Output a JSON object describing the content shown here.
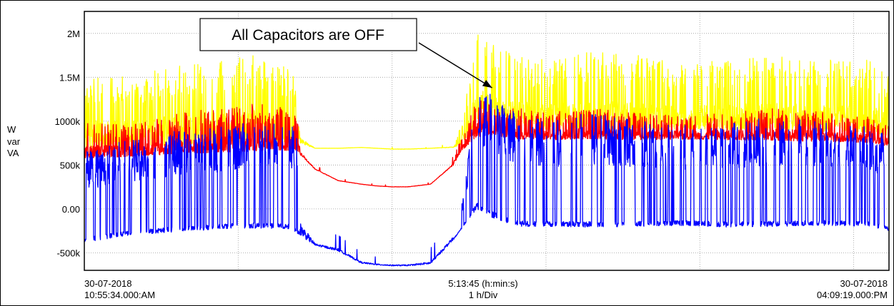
{
  "chart_data": {
    "type": "line",
    "ylabel_lines": [
      "W",
      "var",
      "VA"
    ],
    "y_ticks": [
      {
        "value": -500000,
        "label": "-500k"
      },
      {
        "value": 0,
        "label": "0.00"
      },
      {
        "value": 500000,
        "label": "500k"
      },
      {
        "value": 1000000,
        "label": "1000k"
      },
      {
        "value": 1500000,
        "label": "1.5M"
      },
      {
        "value": 2000000,
        "label": "2M"
      }
    ],
    "ylim": [
      -700000,
      2250000
    ],
    "xlim": [
      0,
      5.2292
    ],
    "grid": true,
    "x_start": {
      "date": "30-07-2018",
      "time": "10:55:34.000:AM"
    },
    "x_end": {
      "date": "30-07-2018",
      "time": "04:09:19.000:PM"
    },
    "x_span": "5:13:45 (h:min:s)",
    "x_scale": "1 h/Div",
    "annotation": {
      "text": "All Capacitors are OFF",
      "x": 2.65,
      "y": 1380000
    },
    "series": [
      {
        "key": "va",
        "color": "#ffff00",
        "mode": "mixed",
        "x": [
          0,
          0.3,
          0.6,
          0.9,
          1.1,
          1.35,
          1.4,
          1.5,
          1.65,
          1.8,
          1.9,
          2.0,
          2.1,
          2.25,
          2.4,
          2.45,
          2.55,
          2.65,
          2.8,
          3.0,
          3.3,
          3.6,
          3.9,
          4.2,
          4.5,
          4.8,
          5.1,
          5.2292
        ],
        "base": [
          650000,
          660000,
          680000,
          700000,
          710000,
          720000,
          750000,
          690000,
          690000,
          700000,
          690000,
          680000,
          680000,
          690000,
          700000,
          720000,
          930000,
          950000,
          880000,
          860000,
          870000,
          860000,
          870000,
          860000,
          850000,
          840000,
          830000,
          800000
        ],
        "peak": [
          1550000,
          1500000,
          1650000,
          1700000,
          1750000,
          1600000,
          1200000,
          700000,
          700000,
          700000,
          700000,
          700000,
          700000,
          700000,
          750000,
          950000,
          2050000,
          1900000,
          1750000,
          1700000,
          1800000,
          1750000,
          1650000,
          1700000,
          1750000,
          1700000,
          1700000,
          1550000
        ],
        "spiky": [
          1,
          1,
          1,
          1,
          1,
          1,
          1,
          0,
          0,
          0,
          0,
          0,
          0,
          0,
          1,
          1,
          1,
          1,
          1,
          1,
          1,
          1,
          1,
          1,
          1,
          1,
          1,
          1
        ]
      },
      {
        "key": "w",
        "color": "#ff0000",
        "mode": "mixed",
        "x": [
          0,
          0.3,
          0.6,
          0.9,
          1.1,
          1.35,
          1.4,
          1.5,
          1.65,
          1.8,
          1.9,
          2.0,
          2.1,
          2.25,
          2.4,
          2.45,
          2.55,
          2.65,
          2.8,
          3.0,
          3.3,
          3.6,
          3.9,
          4.2,
          4.5,
          4.8,
          5.1,
          5.2292
        ],
        "base": [
          550000,
          580000,
          600000,
          620000,
          630000,
          640000,
          620000,
          450000,
          320000,
          280000,
          260000,
          250000,
          250000,
          280000,
          500000,
          650000,
          800000,
          820000,
          780000,
          770000,
          780000,
          770000,
          780000,
          770000,
          760000,
          750000,
          740000,
          700000
        ],
        "peak": [
          1000000,
          950000,
          1100000,
          1150000,
          1200000,
          1150000,
          900000,
          500000,
          350000,
          300000,
          280000,
          270000,
          270000,
          300000,
          600000,
          800000,
          1250000,
          1200000,
          1150000,
          1100000,
          1150000,
          1100000,
          1050000,
          1100000,
          1150000,
          1100000,
          1050000,
          950000
        ],
        "spiky": [
          1,
          1,
          1,
          1,
          1,
          1,
          1,
          0,
          0,
          0,
          0,
          0,
          0,
          0,
          1,
          1,
          1,
          1,
          1,
          1,
          1,
          1,
          1,
          1,
          1,
          1,
          1,
          1
        ]
      },
      {
        "key": "var",
        "color": "#0000ff",
        "mode": "square",
        "x": [
          0,
          0.3,
          0.6,
          0.9,
          1.1,
          1.35,
          1.4,
          1.5,
          1.65,
          1.8,
          1.9,
          2.0,
          2.1,
          2.25,
          2.4,
          2.45,
          2.55,
          2.65,
          2.8,
          3.0,
          3.3,
          3.6,
          3.9,
          4.2,
          4.5,
          4.8,
          5.1,
          5.2292
        ],
        "base": [
          -380000,
          -300000,
          -260000,
          -230000,
          -220000,
          -230000,
          -300000,
          -420000,
          -480000,
          -620000,
          -640000,
          -650000,
          -650000,
          -630000,
          -350000,
          -230000,
          0,
          -100000,
          -200000,
          -200000,
          -210000,
          -200000,
          -190000,
          -210000,
          -200000,
          -190000,
          -200000,
          -250000
        ],
        "peak": [
          650000,
          800000,
          900000,
          950000,
          1000000,
          950000,
          700000,
          -250000,
          -300000,
          -500000,
          -550000,
          -560000,
          -560000,
          -450000,
          -100000,
          50000,
          1350000,
          1300000,
          1100000,
          1000000,
          1100000,
          1000000,
          950000,
          1000000,
          1050000,
          1000000,
          950000,
          850000
        ],
        "spiky": [
          1,
          1,
          1,
          1,
          1,
          1,
          1,
          0,
          0,
          0,
          0,
          0,
          0,
          0,
          1,
          1,
          1,
          1,
          1,
          1,
          1,
          1,
          1,
          1,
          1,
          1,
          1,
          1
        ]
      }
    ]
  }
}
